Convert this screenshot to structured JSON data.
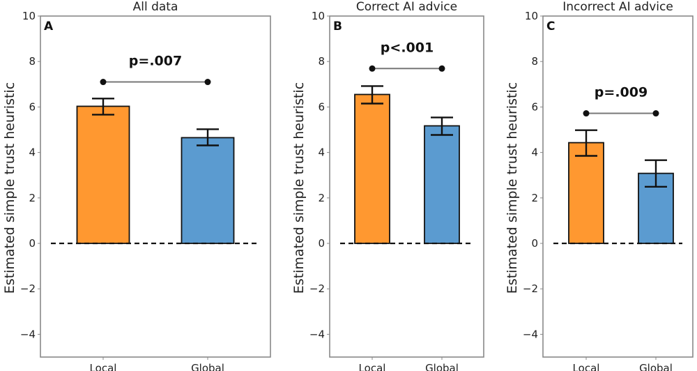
{
  "chart_data": [
    {
      "type": "bar",
      "panel_label": "A",
      "title": "All data",
      "ylabel": "Estimated simple trust heuristic",
      "xlabel": "",
      "categories": [
        "Local",
        "Global"
      ],
      "values": [
        6.03,
        4.65
      ],
      "error_low": [
        5.66,
        4.31
      ],
      "error_high": [
        6.37,
        5.02
      ],
      "colors": [
        "#ff9830",
        "#5b9bd0"
      ],
      "significance": {
        "label": "p=.007",
        "y": 7.1,
        "between": [
          "Local",
          "Global"
        ]
      },
      "baseline": 0,
      "ylim": [
        -5,
        10
      ],
      "yticks": [
        -4,
        -2,
        0,
        2,
        4,
        6,
        8,
        10
      ],
      "grid": false
    },
    {
      "type": "bar",
      "panel_label": "B",
      "title": "Correct AI advice",
      "ylabel": "Estimated simple trust heuristic",
      "xlabel": "",
      "categories": [
        "Local",
        "Global"
      ],
      "values": [
        6.55,
        5.17
      ],
      "error_low": [
        6.15,
        4.77
      ],
      "error_high": [
        6.92,
        5.54
      ],
      "colors": [
        "#ff9830",
        "#5b9bd0"
      ],
      "significance": {
        "label": "p<.001",
        "y": 7.69,
        "between": [
          "Local",
          "Global"
        ]
      },
      "baseline": 0,
      "ylim": [
        -5,
        10
      ],
      "yticks": [
        -4,
        -2,
        0,
        2,
        4,
        6,
        8,
        10
      ],
      "grid": false
    },
    {
      "type": "bar",
      "panel_label": "C",
      "title": "Incorrect AI advice",
      "ylabel": "Estimated simple trust heuristic",
      "xlabel": "",
      "categories": [
        "Local",
        "Global"
      ],
      "values": [
        4.43,
        3.08
      ],
      "error_low": [
        3.85,
        2.49
      ],
      "error_high": [
        4.98,
        3.66
      ],
      "colors": [
        "#ff9830",
        "#5b9bd0"
      ],
      "significance": {
        "label": "p=.009",
        "y": 5.72,
        "between": [
          "Local",
          "Global"
        ]
      },
      "baseline": 0,
      "ylim": [
        -5,
        10
      ],
      "yticks": [
        -4,
        -2,
        0,
        2,
        4,
        6,
        8,
        10
      ],
      "grid": false
    }
  ]
}
